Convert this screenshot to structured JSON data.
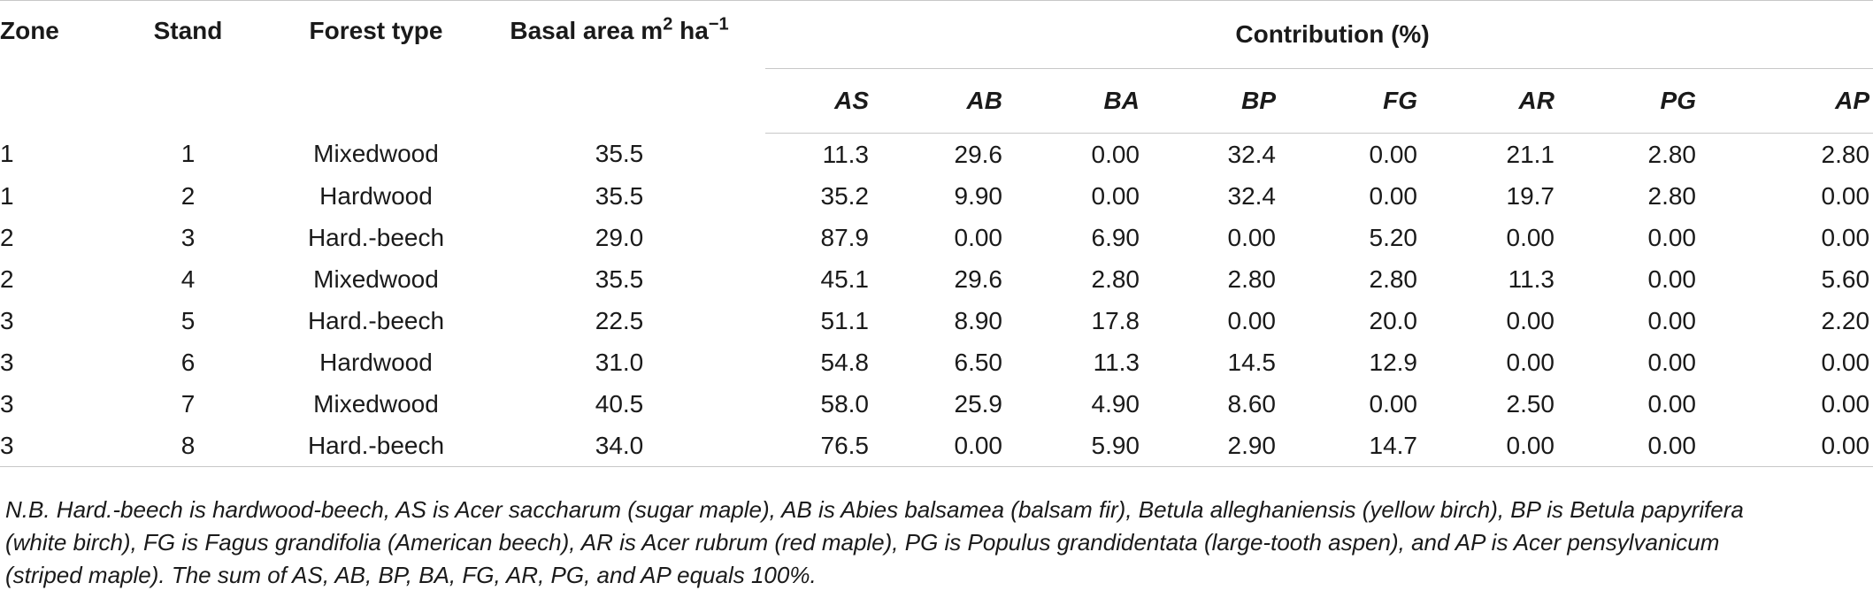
{
  "header": {
    "zone": "Zone",
    "stand": "Stand",
    "forest_type": "Forest type",
    "basal_area_main": "Basal area m",
    "basal_area_sup1": "2",
    "basal_area_unit": " ha",
    "basal_area_sup2": "−1",
    "contribution": "Contribution (%)",
    "species": [
      "AS",
      "AB",
      "BA",
      "BP",
      "FG",
      "AR",
      "PG",
      "AP"
    ]
  },
  "rows": [
    {
      "zone": "1",
      "stand": "1",
      "forest_type": "Mixedwood",
      "basal_area": "35.5",
      "values": [
        "11.3",
        "29.6",
        "0.00",
        "32.4",
        "0.00",
        "21.1",
        "2.80",
        "2.80"
      ]
    },
    {
      "zone": "1",
      "stand": "2",
      "forest_type": "Hardwood",
      "basal_area": "35.5",
      "values": [
        "35.2",
        "9.90",
        "0.00",
        "32.4",
        "0.00",
        "19.7",
        "2.80",
        "0.00"
      ]
    },
    {
      "zone": "2",
      "stand": "3",
      "forest_type": "Hard.-beech",
      "basal_area": "29.0",
      "values": [
        "87.9",
        "0.00",
        "6.90",
        "0.00",
        "5.20",
        "0.00",
        "0.00",
        "0.00"
      ]
    },
    {
      "zone": "2",
      "stand": "4",
      "forest_type": "Mixedwood",
      "basal_area": "35.5",
      "values": [
        "45.1",
        "29.6",
        "2.80",
        "2.80",
        "2.80",
        "11.3",
        "0.00",
        "5.60"
      ]
    },
    {
      "zone": "3",
      "stand": "5",
      "forest_type": "Hard.-beech",
      "basal_area": "22.5",
      "values": [
        "51.1",
        "8.90",
        "17.8",
        "0.00",
        "20.0",
        "0.00",
        "0.00",
        "2.20"
      ]
    },
    {
      "zone": "3",
      "stand": "6",
      "forest_type": "Hardwood",
      "basal_area": "31.0",
      "values": [
        "54.8",
        "6.50",
        "11.3",
        "14.5",
        "12.9",
        "0.00",
        "0.00",
        "0.00"
      ]
    },
    {
      "zone": "3",
      "stand": "7",
      "forest_type": "Mixedwood",
      "basal_area": "40.5",
      "values": [
        "58.0",
        "25.9",
        "4.90",
        "8.60",
        "0.00",
        "2.50",
        "0.00",
        "0.00"
      ]
    },
    {
      "zone": "3",
      "stand": "8",
      "forest_type": "Hard.-beech",
      "basal_area": "34.0",
      "values": [
        "76.5",
        "0.00",
        "5.90",
        "2.90",
        "14.7",
        "0.00",
        "0.00",
        "0.00"
      ]
    }
  ],
  "note": {
    "line1": "N.B. Hard.-beech is hardwood-beech, AS is Acer saccharum (sugar maple), AB is Abies balsamea (balsam fir), Betula alleghaniensis (yellow birch), BP is Betula papyrifera",
    "line2": "(white birch), FG is Fagus grandifolia (American beech), AR is Acer rubrum (red maple), PG is Populus grandidentata (large-tooth aspen), and AP is Acer pensylvanicum",
    "line3": "(striped maple). The sum of AS, AB, BP, BA, FG, AR, PG, and AP equals 100%."
  }
}
